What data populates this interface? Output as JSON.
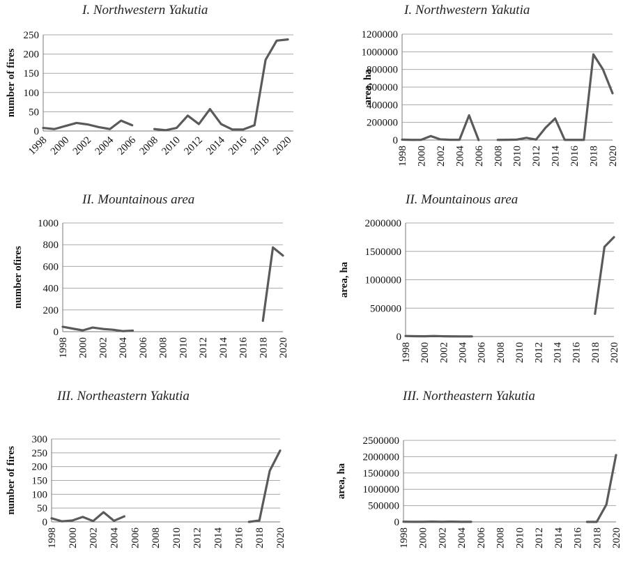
{
  "colors": {
    "line": "#5a5a5a",
    "axis": "#777777",
    "grid": "#a8a8a8"
  },
  "chart_data": [
    {
      "type": "line",
      "title": "I. Northwestern Yakutia",
      "ylabel": "number of fires",
      "ylim": [
        0,
        250
      ],
      "yticks": [
        0,
        50,
        100,
        150,
        200,
        250
      ],
      "ytick_labels": [
        "0",
        "50",
        "100",
        "150",
        "200",
        "250"
      ],
      "xlim": [
        1998,
        2020.5
      ],
      "xticks": [
        1998,
        2000,
        2002,
        2004,
        2006,
        2008,
        2010,
        2012,
        2014,
        2016,
        2018,
        2020
      ],
      "xtick_labels": [
        "1998",
        "2000",
        "2002",
        "2004",
        "2006",
        "2008",
        "2010",
        "2012",
        "2014",
        "2016",
        "2018",
        "2020"
      ],
      "grid": true,
      "series": [
        {
          "x": [
            1998,
            1999,
            2000,
            2001,
            2002,
            2003,
            2004,
            2005,
            2006,
            2007,
            2008,
            2009,
            2010,
            2011,
            2012,
            2013,
            2014,
            2015,
            2016,
            2017,
            2018,
            2019,
            2020
          ],
          "values": [
            8,
            5,
            13,
            21,
            17,
            10,
            5,
            27,
            15,
            null,
            5,
            2,
            8,
            40,
            18,
            57,
            18,
            4,
            4,
            15,
            185,
            235,
            238
          ]
        }
      ]
    },
    {
      "type": "line",
      "title": "I. Northwestern Yakutia",
      "ylabel": "area, ha",
      "ylim": [
        0,
        1200000
      ],
      "yticks": [
        0,
        200000,
        400000,
        600000,
        800000,
        1000000,
        1200000
      ],
      "ytick_labels": [
        "0",
        "200000",
        "400000",
        "600000",
        "800000",
        "1000000",
        "1200000"
      ],
      "xlim": [
        1998,
        2020
      ],
      "xticks": [
        1998,
        2000,
        2002,
        2004,
        2006,
        2008,
        2010,
        2012,
        2014,
        2016,
        2018,
        2020
      ],
      "xtick_labels": [
        "1998",
        "2000",
        "2002",
        "2004",
        "2006",
        "2008",
        "2010",
        "2012",
        "2014",
        "2016",
        "2018",
        "2020"
      ],
      "grid": true,
      "series": [
        {
          "x": [
            1998,
            1999,
            2000,
            2001,
            2002,
            2003,
            2004,
            2005,
            2006,
            2007,
            2008,
            2009,
            2010,
            2011,
            2012,
            2013,
            2014,
            2015,
            2016,
            2017,
            2018,
            2019,
            2020
          ],
          "values": [
            5000,
            2000,
            3000,
            45000,
            8000,
            3000,
            3000,
            280000,
            0,
            null,
            2000,
            3000,
            5000,
            25000,
            5000,
            140000,
            245000,
            2000,
            2000,
            2000,
            970000,
            800000,
            530000
          ]
        }
      ]
    },
    {
      "type": "line",
      "title": "II. Mountainous area",
      "ylabel": "number ofires",
      "ylim": [
        0,
        1000
      ],
      "yticks": [
        0,
        200,
        400,
        600,
        800,
        1000
      ],
      "ytick_labels": [
        "0",
        "200",
        "400",
        "600",
        "800",
        "1000"
      ],
      "xlim": [
        1998,
        2020
      ],
      "xticks": [
        1998,
        2000,
        2002,
        2004,
        2006,
        2008,
        2010,
        2012,
        2014,
        2016,
        2018,
        2020
      ],
      "xtick_labels": [
        "1998",
        "2000",
        "2002",
        "2004",
        "2006",
        "2008",
        "2010",
        "2012",
        "2014",
        "2016",
        "2018",
        "2020"
      ],
      "grid": true,
      "series": [
        {
          "x": [
            1998,
            1999,
            2000,
            2001,
            2002,
            2003,
            2004,
            2005,
            2018,
            2019,
            2020
          ],
          "values": [
            45,
            28,
            12,
            38,
            25,
            18,
            5,
            10,
            100,
            775,
            700
          ],
          "breaks_after": [
            2005
          ]
        }
      ]
    },
    {
      "type": "line",
      "title": "II. Mountainous area",
      "ylabel": "area, ha",
      "ylim": [
        0,
        2000000
      ],
      "yticks": [
        0,
        500000,
        1000000,
        1500000,
        2000000
      ],
      "ytick_labels": [
        "0",
        "500000",
        "1000000",
        "1500000",
        "2000000"
      ],
      "xlim": [
        1998,
        2020
      ],
      "xticks": [
        1998,
        2000,
        2002,
        2004,
        2006,
        2008,
        2010,
        2012,
        2014,
        2016,
        2018,
        2020
      ],
      "xtick_labels": [
        "1998",
        "2000",
        "2002",
        "2004",
        "2006",
        "2008",
        "2010",
        "2012",
        "2014",
        "2016",
        "2018",
        "2020"
      ],
      "grid": true,
      "series": [
        {
          "x": [
            1998,
            1999,
            2000,
            2001,
            2002,
            2003,
            2004,
            2005,
            2018,
            2019,
            2020
          ],
          "values": [
            10000,
            6000,
            5000,
            9000,
            5000,
            3000,
            2000,
            2000,
            400000,
            1580000,
            1750000
          ],
          "breaks_after": [
            2005
          ]
        }
      ]
    },
    {
      "type": "line",
      "title": "III. Northeastern Yakutia",
      "ylabel": "number of fires",
      "ylim": [
        0,
        300
      ],
      "yticks": [
        0,
        50,
        100,
        150,
        200,
        250,
        300
      ],
      "ytick_labels": [
        "0",
        "50",
        "100",
        "150",
        "200",
        "250",
        "300"
      ],
      "xlim": [
        1998,
        2020
      ],
      "xticks": [
        1998,
        2000,
        2002,
        2004,
        2006,
        2008,
        2010,
        2012,
        2014,
        2016,
        2018,
        2020
      ],
      "xtick_labels": [
        "1998",
        "2000",
        "2002",
        "2004",
        "2006",
        "2008",
        "2010",
        "2012",
        "2014",
        "2016",
        "2018",
        "2020"
      ],
      "grid": true,
      "series": [
        {
          "x": [
            1998,
            1999,
            2000,
            2001,
            2002,
            2003,
            2004,
            2005,
            2017,
            2018,
            2019,
            2020
          ],
          "values": [
            13,
            2,
            5,
            18,
            3,
            35,
            4,
            20,
            0,
            5,
            185,
            258
          ],
          "breaks_after": [
            2005
          ]
        }
      ]
    },
    {
      "type": "line",
      "title": "III. Northeastern Yakutia",
      "ylabel": "area, ha",
      "ylim": [
        0,
        2500000
      ],
      "yticks": [
        0,
        500000,
        1000000,
        1500000,
        2000000,
        2500000
      ],
      "ytick_labels": [
        "0",
        "500000",
        "1000000",
        "1500000",
        "2000000",
        "2500000"
      ],
      "xlim": [
        1998,
        2020
      ],
      "xticks": [
        1998,
        2000,
        2002,
        2004,
        2006,
        2008,
        2010,
        2012,
        2014,
        2016,
        2018,
        2020
      ],
      "xtick_labels": [
        "1998",
        "2000",
        "2002",
        "2004",
        "2006",
        "2008",
        "2010",
        "2012",
        "2014",
        "2016",
        "2018",
        "2020"
      ],
      "grid": true,
      "series": [
        {
          "x": [
            1998,
            1999,
            2000,
            2001,
            2002,
            2003,
            2004,
            2005,
            2017,
            2018,
            2019,
            2020
          ],
          "values": [
            5000,
            2000,
            3000,
            8000,
            3000,
            8000,
            3000,
            2000,
            0,
            0,
            530000,
            2050000
          ],
          "breaks_after": [
            2005
          ]
        }
      ]
    }
  ]
}
